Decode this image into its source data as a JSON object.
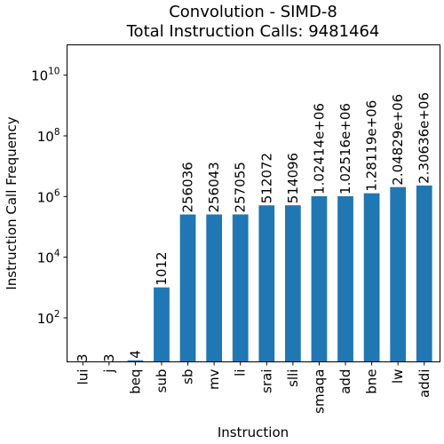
{
  "chart_data": {
    "type": "bar",
    "title": "Convolution - SIMD-8",
    "subtitle": "Total Instruction Calls: 9481464",
    "xlabel": "Instruction",
    "ylabel": "Instruction Call Frequency",
    "yscale": "log",
    "ylim": [
      1,
      100000000000
    ],
    "yticks": [
      {
        "base": "10",
        "exp": "2",
        "value": 100
      },
      {
        "base": "10",
        "exp": "4",
        "value": 10000
      },
      {
        "base": "10",
        "exp": "6",
        "value": 1000000
      },
      {
        "base": "10",
        "exp": "8",
        "value": 100000000
      },
      {
        "base": "10",
        "exp": "10",
        "value": 10000000000
      }
    ],
    "categories": [
      "lui",
      "j",
      "beq",
      "sub",
      "sb",
      "mv",
      "li",
      "srai",
      "slli",
      "smaqa",
      "add",
      "bne",
      "lw",
      "addi"
    ],
    "values": [
      3,
      3,
      4,
      1012,
      256036,
      256043,
      257055,
      512072,
      514096,
      1024140,
      1025160,
      1281190,
      2048290,
      2306360
    ],
    "data_labels": [
      "3",
      "3",
      "4",
      "1012",
      "256036",
      "256043",
      "257055",
      "512072",
      "514096",
      "1.02414e+06",
      "1.02516e+06",
      "1.28119e+06",
      "2.04829e+06",
      "2.30636e+06"
    ],
    "colors": {
      "bar": "#1f77b4"
    },
    "grid": false,
    "legend": "none"
  }
}
